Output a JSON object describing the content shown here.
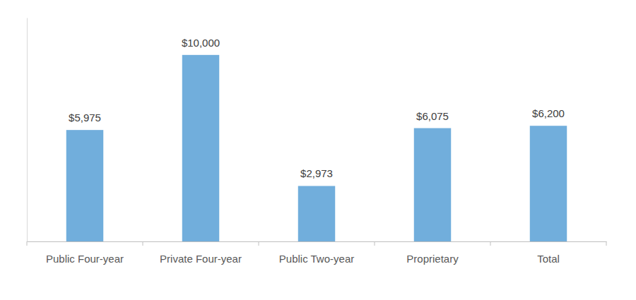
{
  "chart_data": {
    "type": "bar",
    "categories": [
      "Public Four-year",
      "Private Four-year",
      "Public Two-year",
      "Proprietary",
      "Total"
    ],
    "values": [
      5975,
      10000,
      2973,
      6075,
      6200
    ],
    "value_labels": [
      "$5,975",
      "$10,000",
      "$2,973",
      "$6,075",
      "$6,200"
    ],
    "color": "#71aedc",
    "ylim": [
      0,
      12000
    ],
    "data_labels": true,
    "tick_labels": "x"
  }
}
